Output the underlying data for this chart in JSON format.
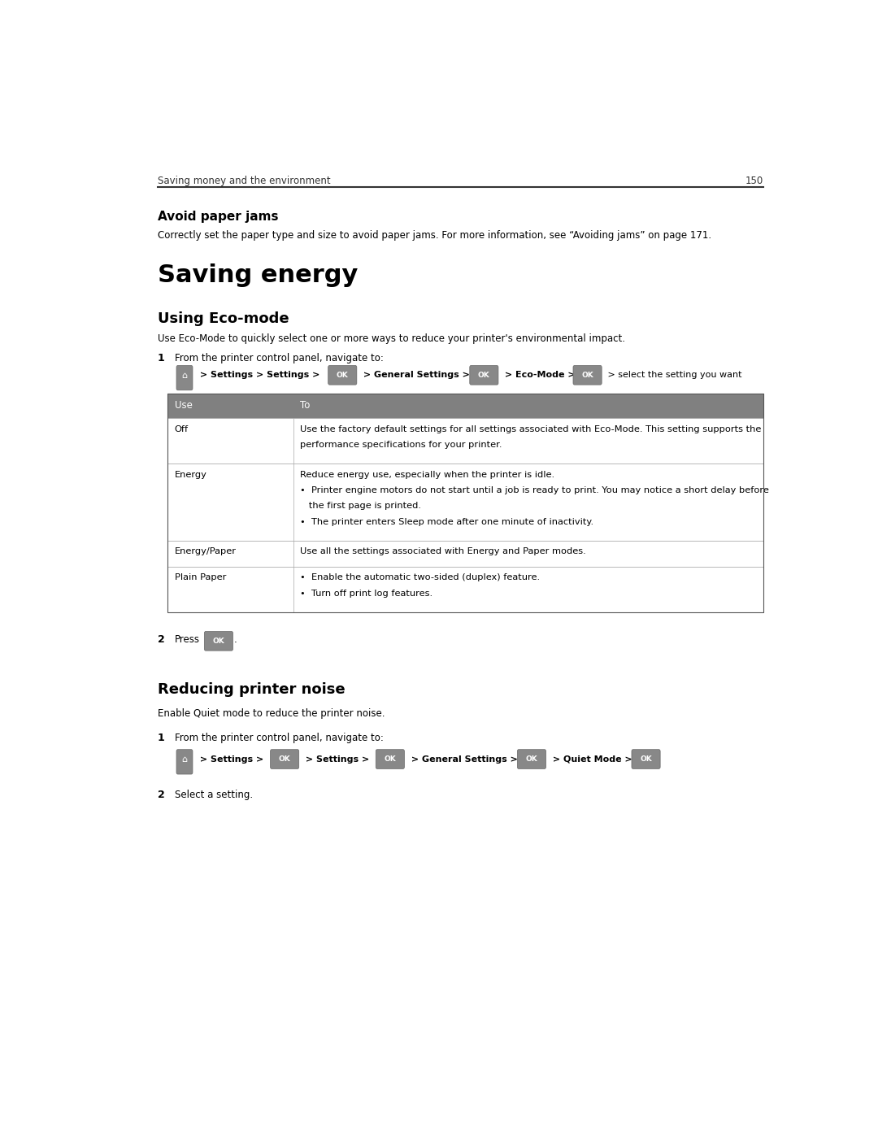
{
  "page_width": 10.8,
  "page_height": 13.97,
  "bg_color": "#ffffff",
  "header_text": "Saving money and the environment",
  "header_page": "150",
  "section1_title": "Avoid paper jams",
  "section1_body": "Correctly set the paper type and size to avoid paper jams. For more information, see “Avoiding jams” on page 171.",
  "section2_title": "Saving energy",
  "section3_title": "Using Eco‑mode",
  "section3_body": "Use Eco-Mode to quickly select one or more ways to reduce your printer's environmental impact.",
  "step1_text": "From the printer control panel, navigate to:",
  "step2_text": "Press",
  "section4_title": "Reducing printer noise",
  "section4_body": "Enable Quiet mode to reduce the printer noise.",
  "step1b_text": "From the printer control panel, navigate to:",
  "step2b_text": "Select a setting.",
  "table_header_color": "#808080",
  "table_border_color": "#555555",
  "text_color": "#000000"
}
